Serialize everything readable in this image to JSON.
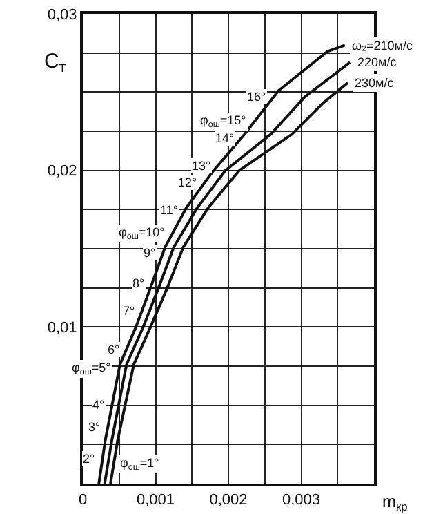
{
  "chart_data": {
    "type": "line",
    "xlabel": "m$_{кр}$",
    "ylabel": "C$_{т}$",
    "xlim": [
      0,
      0.004
    ],
    "ylim": [
      0,
      0.03
    ],
    "xticks": [
      {
        "value": 0,
        "label": "0"
      },
      {
        "value": 0.0005,
        "label": null
      },
      {
        "value": 0.001,
        "label": "0,001"
      },
      {
        "value": 0.0015,
        "label": null
      },
      {
        "value": 0.002,
        "label": "0,002"
      },
      {
        "value": 0.0025,
        "label": null
      },
      {
        "value": 0.003,
        "label": "0,003"
      },
      {
        "value": 0.0035,
        "label": null
      },
      {
        "value": 0.004,
        "label": null
      }
    ],
    "yticks": [
      {
        "value": 0.0025,
        "label": null
      },
      {
        "value": 0.005,
        "label": null
      },
      {
        "value": 0.0075,
        "label": null
      },
      {
        "value": 0.01,
        "label": "0,01"
      },
      {
        "value": 0.0125,
        "label": null
      },
      {
        "value": 0.015,
        "label": null
      },
      {
        "value": 0.0175,
        "label": null
      },
      {
        "value": 0.02,
        "label": "0,02"
      },
      {
        "value": 0.0225,
        "label": null
      },
      {
        "value": 0.025,
        "label": null
      },
      {
        "value": 0.0275,
        "label": null
      },
      {
        "value": 0.03,
        "label": "0,03"
      }
    ],
    "grid": true,
    "legend": false,
    "marker": "none",
    "line_style": "solid",
    "series": [
      {
        "name": "ω₂=210м/с",
        "color": "#111111",
        "x": [
          0.00022,
          0.00031,
          0.00051,
          0.00073,
          0.00093,
          0.00113,
          0.00142,
          0.00178,
          0.00222,
          0.00269,
          0.00336,
          0.0036
        ],
        "values": [
          0,
          0.0028,
          0.0076,
          0.01,
          0.0125,
          0.0151,
          0.0176,
          0.0199,
          0.0223,
          0.0251,
          0.0276,
          0.028
        ]
      },
      {
        "name": "220м/с",
        "color": "#111111",
        "x": [
          0.0003,
          0.0004,
          0.0006,
          0.00083,
          0.00104,
          0.00125,
          0.00157,
          0.00196,
          0.00258,
          0.00305,
          0.00367
        ],
        "values": [
          0,
          0.0028,
          0.0076,
          0.01,
          0.0125,
          0.0151,
          0.0176,
          0.02,
          0.0223,
          0.0247,
          0.0269
        ]
      },
      {
        "name": "230м/с",
        "color": "#111111",
        "x": [
          0.00038,
          0.00048,
          0.0007,
          0.00093,
          0.00116,
          0.00138,
          0.00172,
          0.00215,
          0.00287,
          0.0033,
          0.00364
        ],
        "values": [
          0,
          0.0028,
          0.0076,
          0.01,
          0.0125,
          0.0151,
          0.0176,
          0.02,
          0.0223,
          0.0243,
          0.0256
        ]
      }
    ],
    "annotations": [
      {
        "text": "φ$_{ош}$=1°",
        "x": 0.00042,
        "y": 0.0012
      },
      {
        "text": "2°",
        "x": 0.00027,
        "y": 0.0016
      },
      {
        "text": "3°",
        "x": 0.00034,
        "y": 0.0036
      },
      {
        "text": "4°",
        "x": 0.0004,
        "y": 0.005
      },
      {
        "text": "φ$_{ош}$=5°",
        "x": 0.0005,
        "y": 0.0073
      },
      {
        "text": "6°",
        "x": 0.0006,
        "y": 0.0086
      },
      {
        "text": "7°",
        "x": 0.00081,
        "y": 0.011
      },
      {
        "text": "8°",
        "x": 0.00095,
        "y": 0.0128
      },
      {
        "text": "9°",
        "x": 0.0011,
        "y": 0.0147
      },
      {
        "text": "φ$_{ош}$=10°",
        "x": 0.00123,
        "y": 0.016
      },
      {
        "text": "11°",
        "x": 0.00141,
        "y": 0.0175
      },
      {
        "text": "12°",
        "x": 0.00167,
        "y": 0.0192
      },
      {
        "text": "13°",
        "x": 0.00185,
        "y": 0.0203
      },
      {
        "text": "14°",
        "x": 0.00218,
        "y": 0.0221
      },
      {
        "text": "φ$_{ош}$=15°",
        "x": 0.00235,
        "y": 0.0231
      },
      {
        "text": "16°",
        "x": 0.00262,
        "y": 0.0247
      }
    ]
  }
}
